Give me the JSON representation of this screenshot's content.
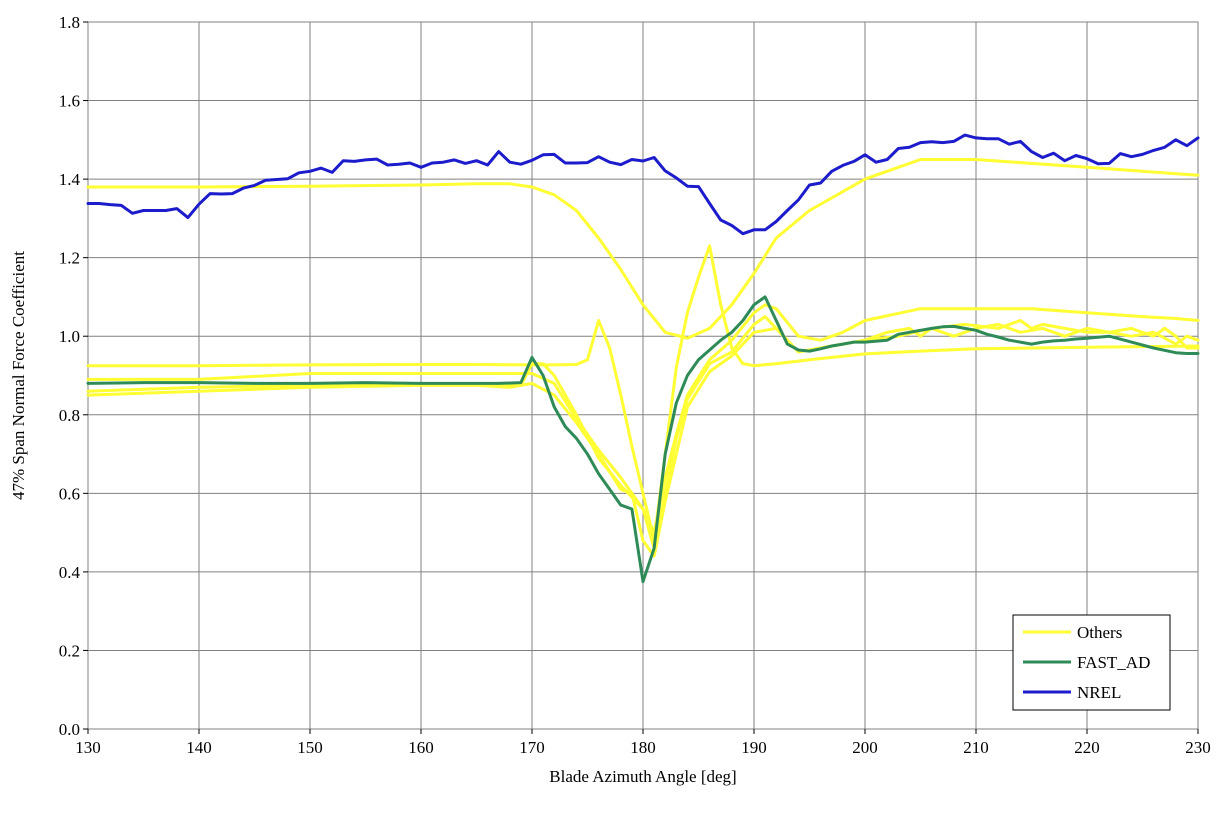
{
  "chart_data": {
    "type": "line",
    "title": "",
    "xlabel": "Blade Azimuth Angle [deg]",
    "ylabel": "47% Span Normal Force Coefficient",
    "xlim": [
      130,
      230
    ],
    "ylim": [
      0.0,
      1.8
    ],
    "xticks": [
      "130",
      "140",
      "150",
      "160",
      "170",
      "180",
      "190",
      "200",
      "210",
      "220",
      "230"
    ],
    "yticks": [
      "0.0",
      "0.2",
      "0.4",
      "0.6",
      "0.8",
      "1.0",
      "1.2",
      "1.4",
      "1.6",
      "1.8"
    ],
    "grid": true,
    "legend_position": "bottom-right",
    "legend": [
      "Others",
      "FAST_AD",
      "NREL"
    ],
    "series": [
      {
        "name": "Others",
        "color": "#ffff33",
        "x": [
          130,
          140,
          150,
          160,
          165,
          168,
          170,
          172,
          174,
          176,
          178,
          180,
          182,
          184,
          186,
          188,
          190,
          192,
          195,
          200,
          205,
          210,
          215,
          220,
          225,
          230
        ],
        "y": [
          1.38,
          1.38,
          1.382,
          1.385,
          1.388,
          1.388,
          1.38,
          1.36,
          1.32,
          1.25,
          1.17,
          1.08,
          1.01,
          0.995,
          1.02,
          1.08,
          1.16,
          1.25,
          1.32,
          1.4,
          1.45,
          1.45,
          1.44,
          1.43,
          1.42,
          1.41
        ]
      },
      {
        "name": "",
        "color": "#ffff33",
        "x": [
          130,
          140,
          150,
          160,
          165,
          170,
          172,
          174,
          175,
          176,
          177,
          178,
          179,
          180,
          181,
          182,
          183,
          184,
          185,
          186,
          187,
          188,
          189,
          190,
          192,
          195,
          200,
          205,
          210,
          220,
          230
        ],
        "y": [
          0.925,
          0.925,
          0.927,
          0.928,
          0.928,
          0.927,
          0.927,
          0.928,
          0.94,
          1.04,
          0.97,
          0.85,
          0.72,
          0.6,
          0.48,
          0.7,
          0.92,
          1.06,
          1.15,
          1.23,
          1.08,
          0.97,
          0.93,
          0.925,
          0.93,
          0.94,
          0.955,
          0.962,
          0.968,
          0.972,
          0.975
        ]
      },
      {
        "name": "",
        "color": "#ffff33",
        "x": [
          130,
          140,
          150,
          160,
          165,
          170,
          172,
          174,
          176,
          178,
          180,
          181,
          182,
          183,
          184,
          186,
          188,
          190,
          191,
          192,
          194,
          196,
          198,
          200,
          205,
          210,
          215,
          220,
          225,
          228,
          230
        ],
        "y": [
          0.89,
          0.89,
          0.905,
          0.905,
          0.905,
          0.905,
          0.88,
          0.79,
          0.71,
          0.64,
          0.56,
          0.5,
          0.64,
          0.75,
          0.85,
          0.94,
          0.99,
          1.06,
          1.08,
          1.07,
          1.0,
          0.99,
          1.01,
          1.04,
          1.07,
          1.07,
          1.07,
          1.06,
          1.05,
          1.045,
          1.04
        ]
      },
      {
        "name": "",
        "color": "#ffff33",
        "x": [
          130,
          140,
          150,
          160,
          165,
          169,
          170,
          171,
          172,
          174,
          176,
          178,
          180,
          181,
          182,
          183,
          184,
          186,
          188,
          190,
          191,
          192,
          194,
          196,
          198,
          200,
          202,
          204,
          205,
          206,
          208,
          210,
          212,
          214,
          216,
          218,
          220,
          222,
          224,
          226,
          228,
          229,
          230
        ],
        "y": [
          0.86,
          0.87,
          0.875,
          0.875,
          0.875,
          0.875,
          0.93,
          0.93,
          0.9,
          0.8,
          0.69,
          0.62,
          0.56,
          0.46,
          0.6,
          0.74,
          0.84,
          0.93,
          0.96,
          1.03,
          1.05,
          1.02,
          0.96,
          0.97,
          0.98,
          0.99,
          1.01,
          1.02,
          1.0,
          1.02,
          1.0,
          1.02,
          1.03,
          1.01,
          1.02,
          1.0,
          1.02,
          1.01,
          1.0,
          1.01,
          0.98,
          1.0,
          0.99
        ]
      },
      {
        "name": "",
        "color": "#ffff33",
        "x": [
          130,
          140,
          150,
          160,
          165,
          168,
          170,
          172,
          174,
          176,
          178,
          179,
          180,
          181,
          182,
          184,
          186,
          188,
          190,
          192,
          194,
          196,
          198,
          200,
          203,
          206,
          209,
          212,
          214,
          215,
          216,
          218,
          220,
          222,
          224,
          226,
          227,
          228,
          229,
          230
        ],
        "y": [
          0.85,
          0.86,
          0.87,
          0.875,
          0.875,
          0.87,
          0.88,
          0.85,
          0.78,
          0.7,
          0.61,
          0.6,
          0.48,
          0.44,
          0.58,
          0.82,
          0.91,
          0.95,
          1.01,
          1.02,
          0.96,
          0.97,
          0.98,
          0.99,
          1.0,
          1.02,
          1.03,
          1.02,
          1.04,
          1.02,
          1.03,
          1.02,
          1.01,
          1.01,
          1.02,
          1.0,
          1.02,
          1.0,
          0.97,
          0.97
        ]
      },
      {
        "name": "FAST_AD",
        "color": "#2e8b57",
        "x": [
          130,
          135,
          140,
          145,
          150,
          155,
          160,
          165,
          167,
          169,
          170,
          171,
          172,
          173,
          174,
          175,
          176,
          177,
          178,
          179,
          180,
          181,
          182,
          183,
          184,
          185,
          186,
          187,
          188,
          189,
          190,
          191,
          192,
          193,
          194,
          195,
          196,
          197,
          198,
          199,
          200,
          202,
          203,
          205,
          206,
          207,
          208,
          209,
          210,
          211,
          212,
          213,
          214,
          215,
          216,
          217,
          218,
          219,
          220,
          222,
          224,
          226,
          228,
          229,
          230
        ],
        "y": [
          0.88,
          0.882,
          0.882,
          0.88,
          0.88,
          0.882,
          0.88,
          0.88,
          0.88,
          0.882,
          0.946,
          0.9,
          0.82,
          0.77,
          0.74,
          0.7,
          0.65,
          0.61,
          0.57,
          0.56,
          0.375,
          0.46,
          0.7,
          0.83,
          0.9,
          0.94,
          0.965,
          0.99,
          1.01,
          1.04,
          1.08,
          1.1,
          1.04,
          0.98,
          0.965,
          0.962,
          0.968,
          0.975,
          0.98,
          0.985,
          0.985,
          0.99,
          1.005,
          1.015,
          1.02,
          1.024,
          1.025,
          1.02,
          1.015,
          1.005,
          0.998,
          0.99,
          0.985,
          0.98,
          0.985,
          0.988,
          0.99,
          0.993,
          0.995,
          1.0,
          0.985,
          0.97,
          0.958,
          0.956,
          0.956
        ]
      },
      {
        "name": "NREL",
        "color": "#1c1ccc",
        "x": [
          130,
          131,
          132,
          133,
          134,
          135,
          136,
          137,
          138,
          139,
          140,
          141,
          142,
          143,
          144,
          145,
          146,
          147,
          148,
          149,
          150,
          151,
          152,
          153,
          154,
          155,
          156,
          157,
          158,
          159,
          160,
          161,
          162,
          163,
          164,
          165,
          166,
          167,
          168,
          169,
          170,
          171,
          172,
          173,
          174,
          175,
          176,
          177,
          178,
          179,
          180,
          181,
          182,
          183,
          184,
          185,
          186,
          187,
          188,
          189,
          190,
          191,
          192,
          193,
          194,
          195,
          196,
          197,
          198,
          199,
          200,
          201,
          202,
          203,
          204,
          205,
          206,
          207,
          208,
          209,
          210,
          211,
          212,
          213,
          214,
          215,
          216,
          217,
          218,
          219,
          220,
          221,
          222,
          223,
          224,
          225,
          226,
          227,
          228,
          229,
          230
        ],
        "y": [
          1.338,
          1.338,
          1.335,
          1.333,
          1.313,
          1.32,
          1.32,
          1.32,
          1.325,
          1.302,
          1.336,
          1.363,
          1.362,
          1.363,
          1.377,
          1.384,
          1.397,
          1.399,
          1.401,
          1.416,
          1.42,
          1.428,
          1.417,
          1.447,
          1.445,
          1.449,
          1.451,
          1.436,
          1.438,
          1.441,
          1.43,
          1.441,
          1.443,
          1.449,
          1.44,
          1.447,
          1.436,
          1.47,
          1.443,
          1.438,
          1.448,
          1.462,
          1.463,
          1.441,
          1.441,
          1.442,
          1.457,
          1.443,
          1.437,
          1.45,
          1.446,
          1.455,
          1.421,
          1.403,
          1.382,
          1.381,
          1.338,
          1.296,
          1.282,
          1.261,
          1.271,
          1.271,
          1.292,
          1.32,
          1.347,
          1.385,
          1.39,
          1.42,
          1.435,
          1.445,
          1.462,
          1.443,
          1.45,
          1.478,
          1.481,
          1.493,
          1.495,
          1.493,
          1.496,
          1.512,
          1.505,
          1.503,
          1.503,
          1.489,
          1.496,
          1.47,
          1.455,
          1.466,
          1.447,
          1.46,
          1.452,
          1.439,
          1.44,
          1.465,
          1.457,
          1.463,
          1.473,
          1.481,
          1.5,
          1.485,
          1.505
        ]
      }
    ]
  }
}
